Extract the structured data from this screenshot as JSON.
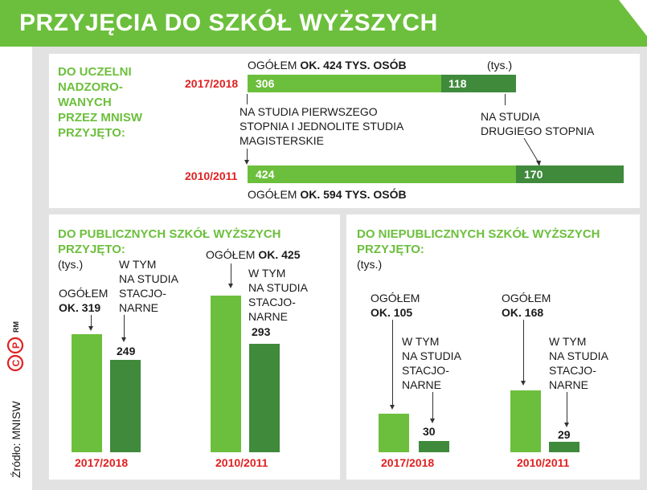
{
  "title": "PRZYJĘCIA DO SZKÓŁ WYŻSZYCH",
  "source": "Źródło: MNISW",
  "copyright": "RM",
  "colors": {
    "light_green": "#6cbf3c",
    "dark_green": "#3f8a3b",
    "red": "#e02020",
    "grey": "#e2e2e2"
  },
  "top": {
    "heading": [
      "DO UCZELNI",
      "NADZORO-",
      "WANYCH",
      "PRZEZ MNISW",
      "PRZYJĘTO:"
    ],
    "unit": "(tys.)",
    "total_2017_prefix": "OGÓŁEM ",
    "total_2017_value": "OK. 424 TYS. OSÓB",
    "total_2010_prefix": "OGÓŁEM ",
    "total_2010_value": "OK. 594 TYS. OSÓB",
    "note_first": [
      "NA STUDIA PIERWSZEGO",
      "STOPNIA I JEDNOLITE STUDIA",
      "MAGISTERSKIE"
    ],
    "note_second": [
      "NA STUDIA",
      "DRUGIEGO STOPNIA"
    ]
  },
  "public": {
    "heading": [
      "DO PUBLICZNYCH SZKÓŁ WYŻSZYCH",
      "PRZYJĘTO:"
    ],
    "unit": "(tys.)",
    "total_label": "OGÓŁEM",
    "y2017_total": "OK. 319",
    "y2010_total": "OK. 425",
    "note": [
      "W TYM",
      "NA STUDIA",
      "STACJO-",
      "NARNE"
    ]
  },
  "private": {
    "heading": [
      "DO NIEPUBLICZNYCH SZKÓŁ WYŻSZYCH",
      "PRZYJĘTO:"
    ],
    "unit": "(tys.)",
    "total_label": "OGÓŁEM",
    "y2017_total": "OK. 105",
    "y2010_total": "OK. 168",
    "note": [
      "W TYM",
      "NA STUDIA",
      "STACJO-",
      "NARNE"
    ]
  },
  "chart_data": [
    {
      "type": "bar",
      "orientation": "horizontal-stacked",
      "categories": [
        "2017/2018",
        "2010/2011"
      ],
      "series": [
        {
          "name": "NA STUDIA PIERWSZEGO STOPNIA I JEDNOLITE STUDIA MAGISTERSKIE",
          "values": [
            306,
            424
          ]
        },
        {
          "name": "NA STUDIA DRUGIEGO STOPNIA",
          "values": [
            118,
            170
          ]
        }
      ],
      "xlim": [
        0,
        594
      ]
    },
    {
      "type": "bar",
      "categories": [
        "2017/2018",
        "2010/2011"
      ],
      "series": [
        {
          "name": "OGÓŁEM",
          "values": [
            319,
            425
          ]
        },
        {
          "name": "W TYM NA STUDIA STACJONARNE",
          "values": [
            249,
            293
          ]
        }
      ]
    },
    {
      "type": "bar",
      "categories": [
        "2017/2018",
        "2010/2011"
      ],
      "series": [
        {
          "name": "OGÓŁEM",
          "values": [
            105,
            168
          ]
        },
        {
          "name": "W TYM NA STUDIA STACJONARNE",
          "values": [
            30,
            29
          ]
        }
      ]
    }
  ]
}
